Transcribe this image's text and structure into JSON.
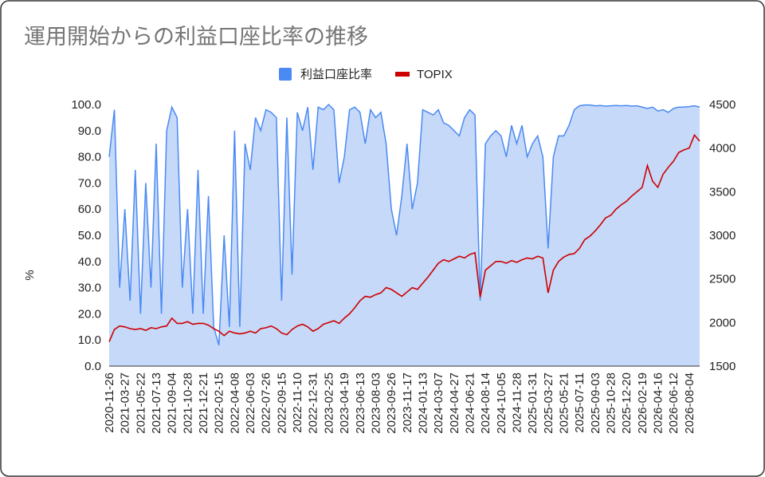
{
  "chart_data": {
    "type": "area_line",
    "title": "運用開始からの利益口座比率の推移",
    "ylabel": "%",
    "legend": "top",
    "categories": [
      "2020-11-26",
      null,
      null,
      "2021-03-27",
      null,
      null,
      "2021-05-22",
      null,
      null,
      "2021-07-13",
      null,
      null,
      "2021-09-04",
      null,
      null,
      "2021-10-28",
      null,
      null,
      "2021-12-21",
      null,
      null,
      "2022-02-15",
      null,
      null,
      "2022-04-08",
      null,
      null,
      "2022-06-03",
      null,
      null,
      "2022-07-26",
      null,
      null,
      "2022-09-15",
      null,
      null,
      "2022-11-10",
      null,
      null,
      "2022-12-31",
      null,
      null,
      "2023-02-25",
      null,
      null,
      "2023-04-19",
      null,
      null,
      "2023-06-13",
      null,
      null,
      "2023-08-03",
      null,
      null,
      "2023-09-26",
      null,
      null,
      "2023-11-17",
      null,
      null,
      "2024-01-13",
      null,
      null,
      "2024-03-07",
      null,
      null,
      "2024-04-27",
      null,
      null,
      "2024-06-21",
      null,
      null,
      "2024-08-14",
      null,
      null,
      "2024-10-05",
      null,
      null,
      "2024-11-28",
      null,
      null,
      "2025-01-31",
      null,
      null,
      "2025-03-27",
      null,
      null,
      "2025-05-21",
      null,
      null,
      "2025-07-11",
      null,
      null,
      "2025-09-03",
      null,
      null,
      "2025-10-28",
      null,
      null,
      "2025-12-20",
      null,
      null,
      "2026-02-19",
      null,
      null,
      "2026-04-16",
      null,
      null,
      "2026-06-12",
      null,
      null,
      "2026-08-04",
      null,
      null
    ],
    "series": [
      {
        "name": "利益口座比率",
        "color": "#4a8af4",
        "fill": "#c6d9f8",
        "kind": "area",
        "values": [
          80,
          98,
          30,
          60,
          25,
          75,
          20,
          70,
          30,
          85,
          20,
          90,
          99,
          95,
          30,
          60,
          20,
          75,
          20,
          65,
          15,
          8,
          50,
          15,
          90,
          15,
          85,
          75,
          95,
          90,
          98,
          97,
          95,
          25,
          95,
          35,
          97,
          90,
          99,
          75,
          99,
          98,
          100,
          98,
          70,
          80,
          98,
          99,
          97,
          85,
          98,
          95,
          97,
          85,
          60,
          50,
          65,
          85,
          60,
          70,
          98,
          97,
          96,
          98,
          93,
          92,
          90,
          88,
          95,
          98,
          96,
          25,
          85,
          88,
          90,
          88,
          80,
          92,
          85,
          92,
          80,
          85,
          88,
          80,
          45,
          80,
          88,
          88,
          92,
          98,
          99.5,
          99.8,
          99.8,
          99.5,
          99.6,
          99.4,
          99.5,
          99.6,
          99.5,
          99.6,
          99.4,
          99.5,
          99,
          98.5,
          99,
          97.5,
          98,
          97,
          98.5,
          99,
          99,
          99.2,
          99.5,
          99
        ]
      },
      {
        "name": "TOPIX",
        "color": "#cc0000",
        "kind": "line",
        "axis": "y2",
        "values": [
          1780,
          1920,
          1960,
          1950,
          1930,
          1920,
          1930,
          1910,
          1940,
          1930,
          1950,
          1960,
          2050,
          1990,
          1990,
          2010,
          1980,
          1990,
          1990,
          1970,
          1930,
          1900,
          1850,
          1900,
          1880,
          1870,
          1880,
          1900,
          1880,
          1930,
          1940,
          1960,
          1930,
          1880,
          1860,
          1920,
          1960,
          1980,
          1950,
          1900,
          1930,
          1980,
          2000,
          2020,
          1990,
          2050,
          2100,
          2170,
          2250,
          2300,
          2290,
          2320,
          2340,
          2400,
          2380,
          2340,
          2300,
          2350,
          2400,
          2380,
          2450,
          2520,
          2600,
          2680,
          2720,
          2700,
          2730,
          2760,
          2740,
          2780,
          2800,
          2290,
          2600,
          2650,
          2700,
          2700,
          2680,
          2710,
          2690,
          2720,
          2740,
          2730,
          2760,
          2740,
          2340,
          2600,
          2700,
          2750,
          2780,
          2790,
          2850,
          2950,
          2990,
          3050,
          3120,
          3200,
          3230,
          3300,
          3350,
          3390,
          3450,
          3500,
          3550,
          3800,
          3620,
          3550,
          3700,
          3780,
          3850,
          3950,
          3980,
          4000,
          4150,
          4080
        ]
      }
    ],
    "ylim": [
      0,
      100
    ],
    "yticks": [
      {
        "value": 0,
        "label": "0.0"
      },
      {
        "value": 10,
        "label": "10.0"
      },
      {
        "value": 20,
        "label": "20.0"
      },
      {
        "value": 30,
        "label": "30.0"
      },
      {
        "value": 40,
        "label": "40.0"
      },
      {
        "value": 50,
        "label": "50.0"
      },
      {
        "value": 60,
        "label": "60.0"
      },
      {
        "value": 70,
        "label": "70.0"
      },
      {
        "value": 80,
        "label": "80.0"
      },
      {
        "value": 90,
        "label": "90.0"
      },
      {
        "value": 100,
        "label": "100.0"
      }
    ],
    "y2lim": [
      1500,
      4500
    ],
    "y2ticks": [
      1500,
      2000,
      2500,
      3000,
      3500,
      4000,
      4500
    ],
    "grid": false
  }
}
